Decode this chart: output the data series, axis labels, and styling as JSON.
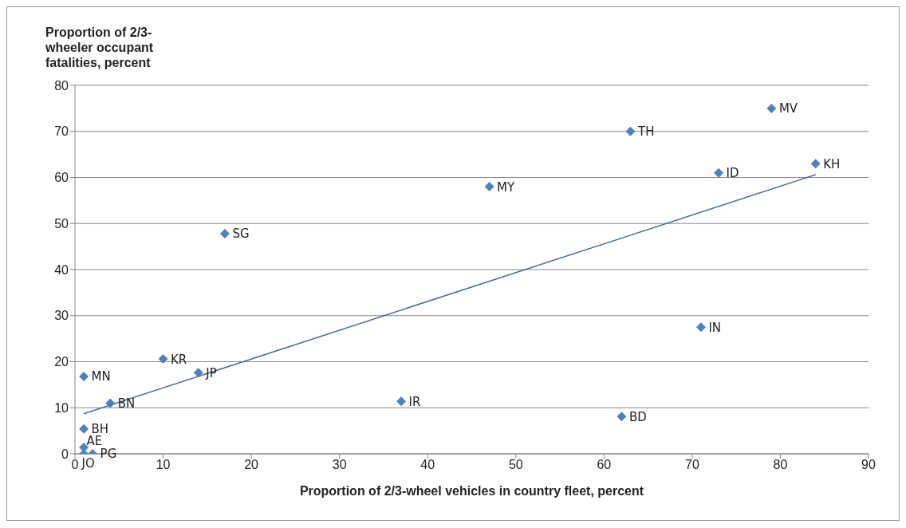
{
  "chart_data": {
    "type": "scatter",
    "xlabel": "Proportion of 2/3-wheel vehicles in country fleet, percent",
    "ylabel": "Proportion of 2/3-wheeler occupant fatalities, percent",
    "xlim": [
      0,
      90
    ],
    "xticks": [
      0,
      10,
      20,
      30,
      40,
      50,
      60,
      70,
      80,
      90
    ],
    "ylim": [
      0,
      80
    ],
    "yticks": [
      0,
      10,
      20,
      30,
      40,
      50,
      60,
      70,
      80
    ],
    "grid": "y",
    "legend": false,
    "marker": "diamond",
    "series": [
      {
        "type": "scatter",
        "color": "#4f81bd",
        "x": [
          79,
          63,
          84,
          73,
          47,
          17,
          71,
          10,
          14,
          1,
          4,
          37,
          62,
          1,
          1,
          1,
          2
        ],
        "values": [
          75,
          70,
          63,
          61,
          58,
          47.8,
          27.5,
          20.6,
          17.6,
          16.8,
          11,
          11.4,
          8.1,
          5.4,
          1.4,
          0,
          0
        ],
        "value_labels": [
          "MV",
          "TH",
          "KH",
          "ID",
          "MY",
          "SG",
          "IN",
          "KR",
          "JP",
          "MN",
          "BN",
          "IR",
          "BD",
          "BH",
          "AE",
          "JO",
          "PG"
        ]
      },
      {
        "type": "line",
        "color": "#4a6a9c",
        "marker": "none",
        "x": [
          1,
          84
        ],
        "values": [
          8.7,
          60.6
        ]
      }
    ]
  }
}
